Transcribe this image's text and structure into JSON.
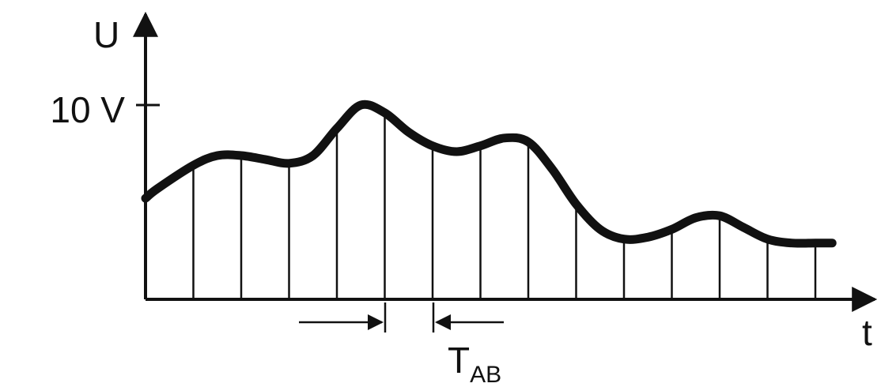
{
  "labels": {
    "y_axis": "U",
    "x_axis": "t",
    "tick": "10 V",
    "interval_main": "T",
    "interval_sub": "AB"
  },
  "style": {
    "stroke": "#111111",
    "background": "#ffffff"
  },
  "chart_data": {
    "type": "line",
    "xlabel": "t",
    "ylabel": "U",
    "y_tick_labels": [
      "10 V"
    ],
    "ylim": [
      0,
      11.5
    ],
    "sampling": {
      "label": "T_AB",
      "sample_count": 15,
      "sample_interval_units": 1
    },
    "series": [
      {
        "x": [
          0,
          0.25,
          1,
          1.5,
          2,
          2.5,
          3,
          3.5,
          4,
          4.5,
          5,
          5.5,
          6,
          6.5,
          7,
          7.5,
          8,
          8.5,
          9,
          9.5,
          10,
          10.5,
          11,
          11.5,
          12,
          12.5,
          13,
          13.5,
          14,
          14.35
        ],
        "y": [
          5.2,
          5.7,
          6.9,
          7.4,
          7.4,
          7.2,
          7.0,
          7.4,
          8.8,
          10.0,
          9.6,
          8.6,
          7.9,
          7.6,
          7.9,
          8.3,
          8.1,
          6.7,
          4.9,
          3.6,
          3.1,
          3.2,
          3.6,
          4.2,
          4.3,
          3.7,
          3.1,
          2.9,
          2.9,
          2.9
        ]
      }
    ]
  }
}
